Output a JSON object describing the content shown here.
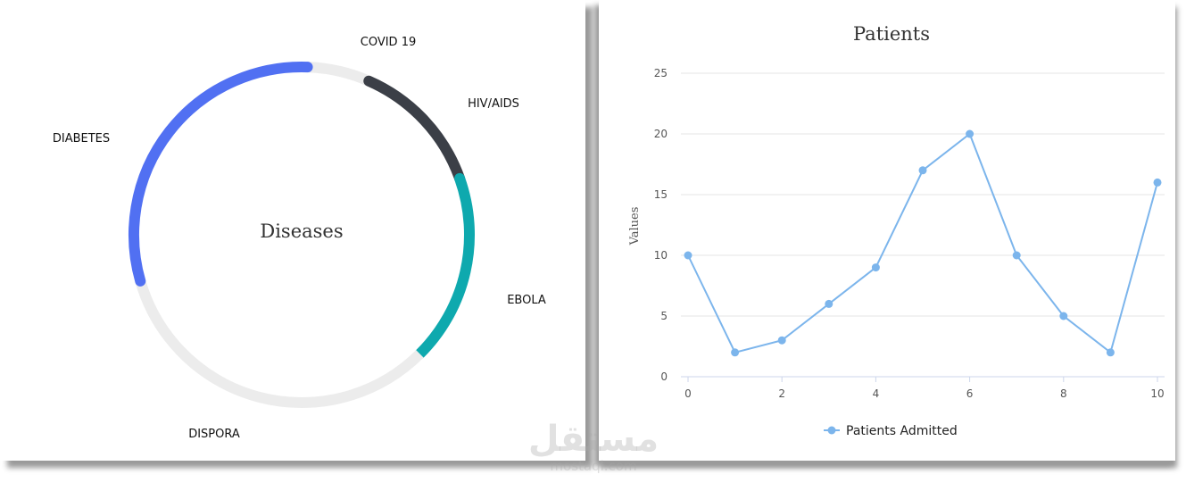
{
  "chart_data": [
    {
      "type": "pie",
      "title": "Diseases",
      "categories": [
        "COVID 19",
        "HIV/AIDS",
        "EBOLA",
        "DISPORA",
        "DIABETES"
      ],
      "segments": [
        {
          "label": "COVID 19",
          "value": 6,
          "color": "#ececec"
        },
        {
          "label": "HIV/AIDS",
          "value": 13,
          "color": "#3b3f47"
        },
        {
          "label": "EBOLA",
          "value": 18,
          "color": "#0ea9ae"
        },
        {
          "label": "DISPORA",
          "value": 33,
          "color": "#ececec"
        },
        {
          "label": "DIABETES",
          "value": 30,
          "color": "#5170f2"
        }
      ]
    },
    {
      "type": "line",
      "title": "Patients",
      "xlabel": "",
      "ylabel": "Values",
      "x": [
        0,
        1,
        2,
        3,
        4,
        5,
        6,
        7,
        8,
        9,
        10
      ],
      "xticks": [
        0,
        2,
        4,
        6,
        8,
        10
      ],
      "yticks": [
        0,
        5,
        10,
        15,
        20,
        25
      ],
      "xlim": [
        0,
        10
      ],
      "ylim": [
        0,
        25
      ],
      "grid": true,
      "legend_position": "bottom-center",
      "series": [
        {
          "name": "Patients Admitted",
          "color": "#7cb5ec",
          "values": [
            10,
            2,
            3,
            6,
            9,
            17,
            20,
            10,
            5,
            2,
            16
          ]
        }
      ]
    }
  ],
  "watermark": {
    "arabic": "مستقل",
    "latin": "mostaql.com"
  }
}
